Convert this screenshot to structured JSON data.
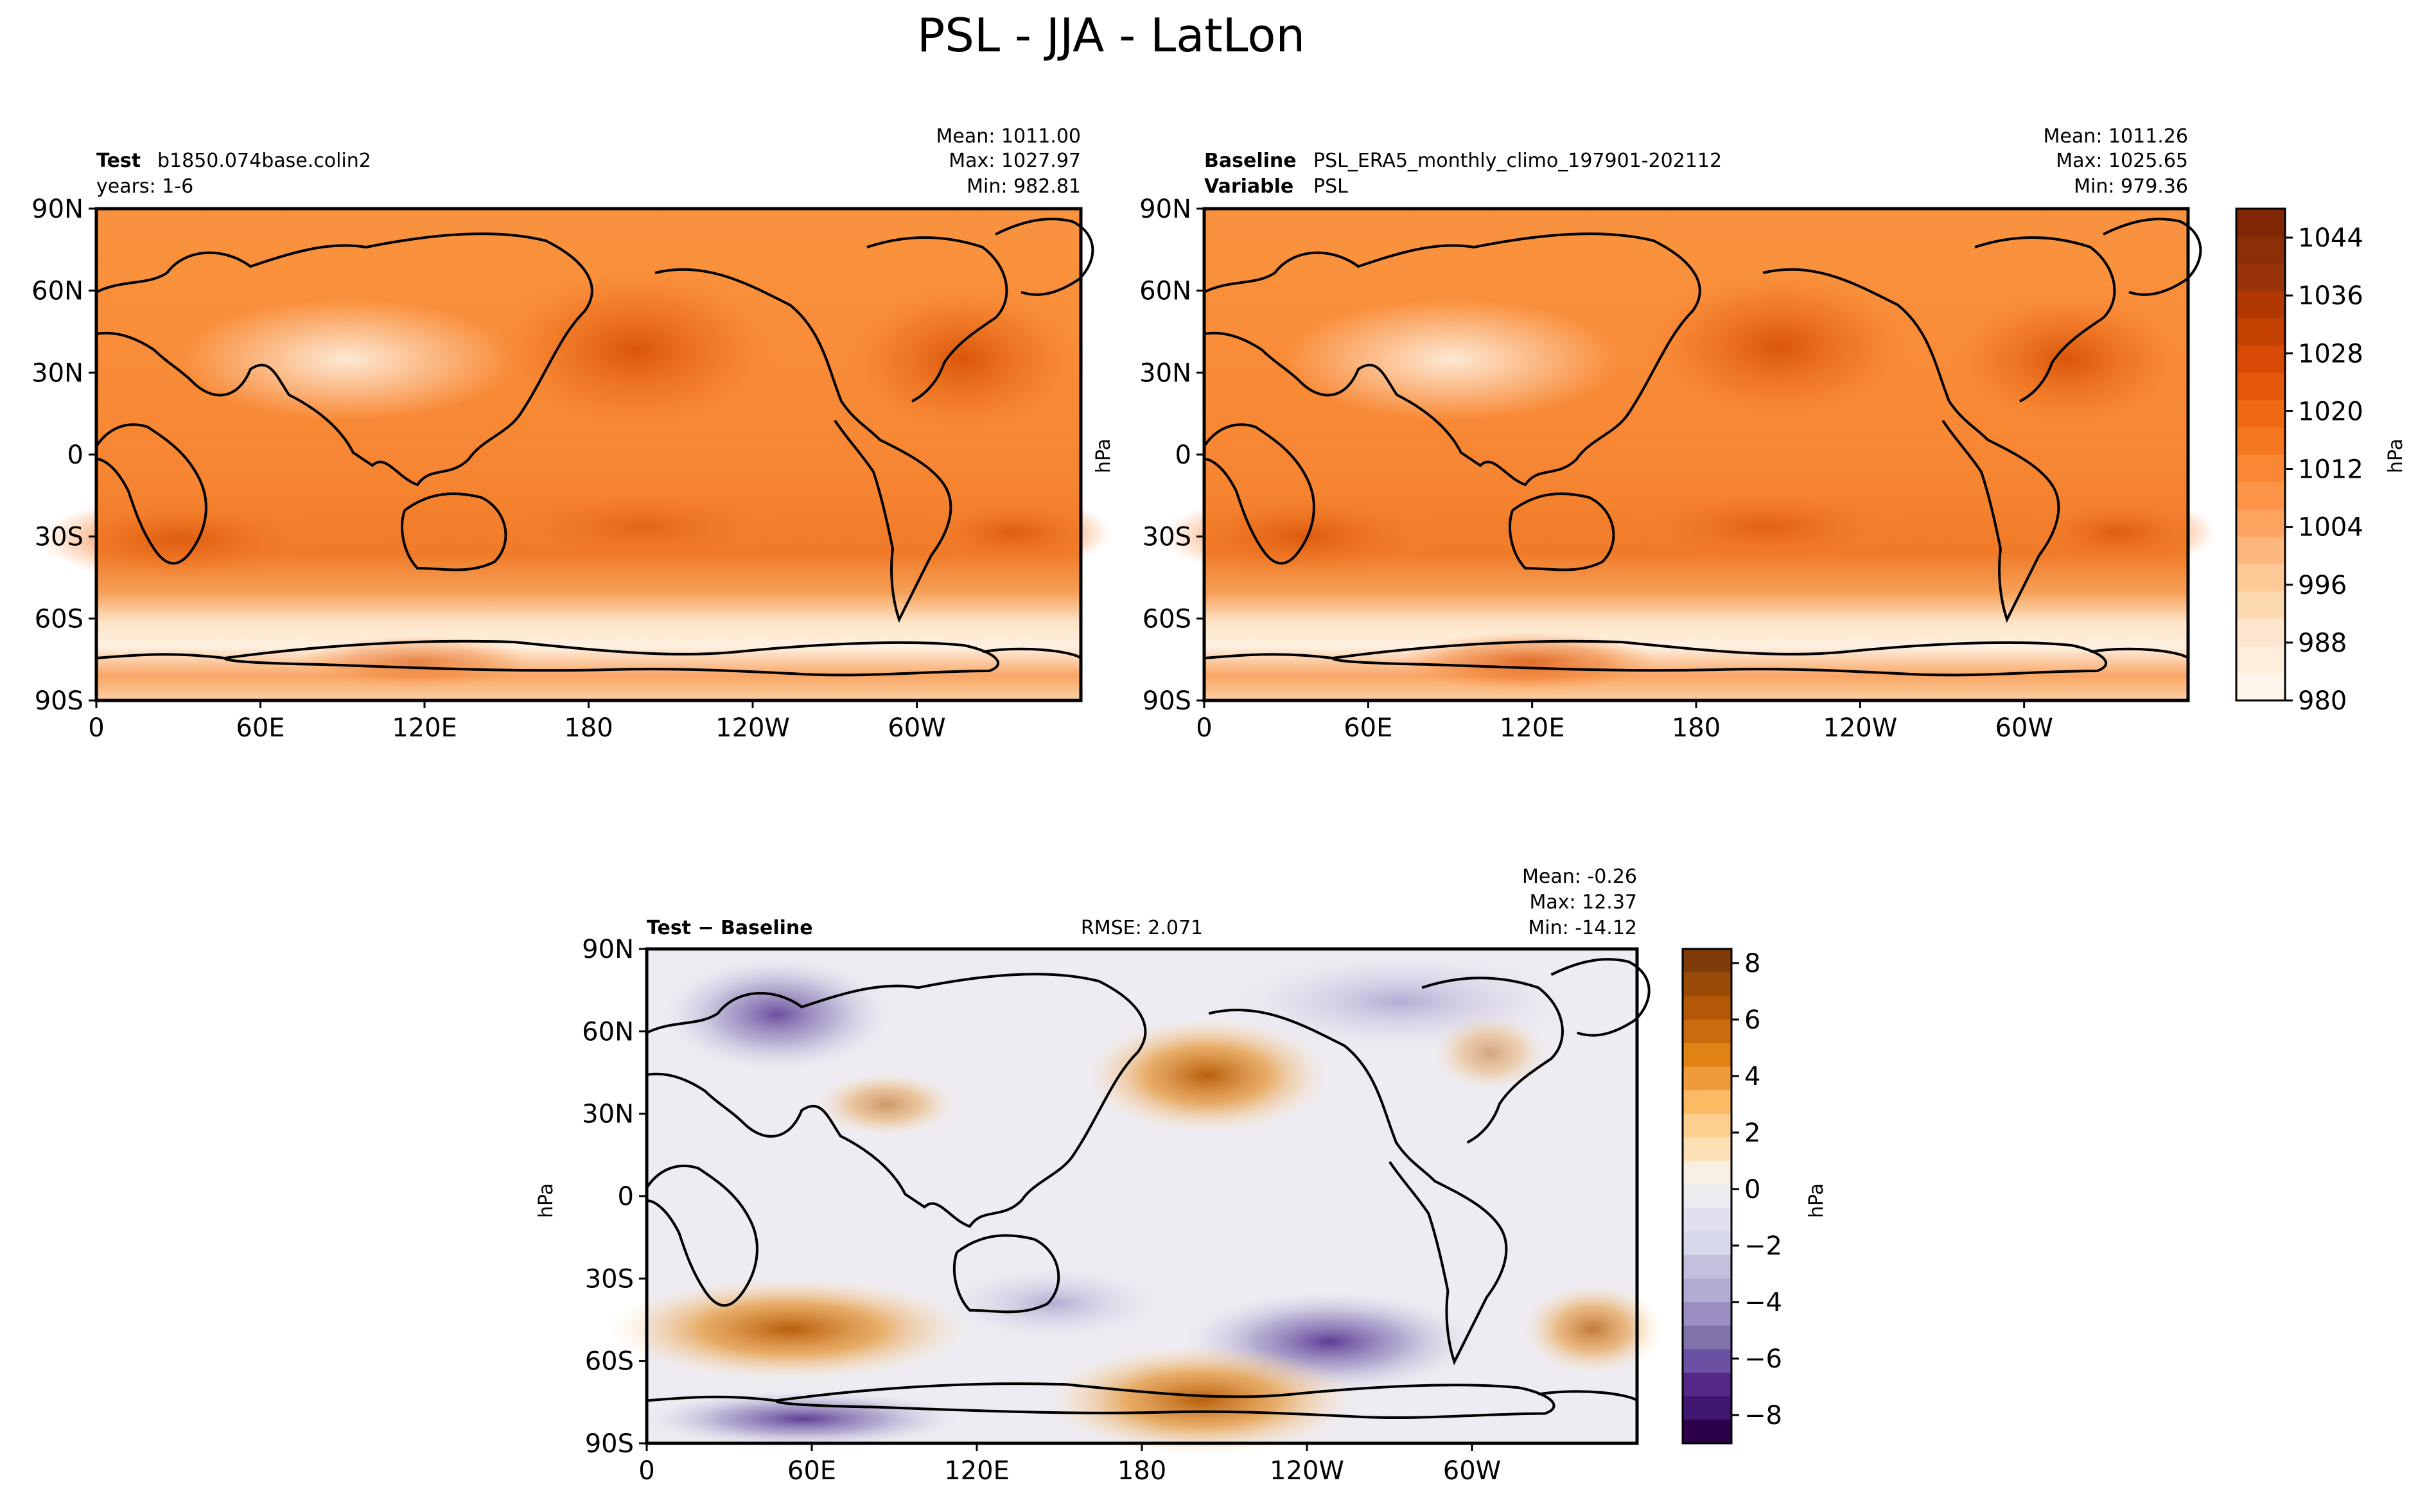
{
  "title": "PSL - JJA - LatLon",
  "panels": {
    "test": {
      "label": "Test",
      "case": "b1850.074base.colin2",
      "years": "years: 1-6",
      "mean": "Mean: 1011.00",
      "max": "Max: 1027.97",
      "min": "Min: 982.81"
    },
    "baseline": {
      "label": "Baseline",
      "case": "PSL_ERA5_monthly_climo_197901-202112",
      "variable_label": "Variable",
      "variable": "PSL",
      "mean": "Mean: 1011.26",
      "max": "Max: 1025.65",
      "min": "Min: 979.36"
    },
    "diff": {
      "label": "Test − Baseline",
      "rmse": "RMSE: 2.071",
      "mean": "Mean: -0.26",
      "max": "Max: 12.37",
      "min": "Min: -14.12"
    }
  },
  "axes": {
    "lat_ticks": [
      "90N",
      "60N",
      "30N",
      "0",
      "30S",
      "60S",
      "90S"
    ],
    "lon_ticks": [
      "0",
      "60E",
      "120E",
      "180",
      "120W",
      "60W"
    ],
    "unit_label": "hPa"
  },
  "colorbars": {
    "psl": {
      "ticks": [
        "980",
        "988",
        "996",
        "1004",
        "1012",
        "1020",
        "1028",
        "1036",
        "1044"
      ],
      "label": "hPa",
      "colors": [
        "#fff5eb",
        "#feedda",
        "#fee6ce",
        "#fdd9b0",
        "#fdc997",
        "#fdb77e",
        "#fda35f",
        "#fd9447",
        "#f88632",
        "#f47720",
        "#ee6911",
        "#e45809",
        "#d84a04",
        "#c54102",
        "#b23801",
        "#99340a",
        "#8a2e06",
        "#7f2704"
      ]
    },
    "diff": {
      "ticks": [
        "8",
        "6",
        "4",
        "2",
        "0",
        "−2",
        "−4",
        "−6",
        "−8"
      ],
      "label": "hPa",
      "colors": [
        "#7f3b08",
        "#9a4b08",
        "#b35806",
        "#c96b0e",
        "#e08214",
        "#ee9b3c",
        "#fdb863",
        "#fdcf8e",
        "#fee0b6",
        "#f7efe2",
        "#ececf0",
        "#e2e0ee",
        "#d8daeb",
        "#c3bedc",
        "#b2abd2",
        "#9b8fc2",
        "#8073ac",
        "#6a51a3",
        "#542788",
        "#3f1770",
        "#2d004b"
      ]
    }
  },
  "chart_data": [
    {
      "type": "heatmap",
      "name": "Test",
      "variable": "PSL",
      "season": "JJA",
      "unit": "hPa",
      "xlim": [
        0,
        360
      ],
      "ylim": [
        -90,
        90
      ],
      "colorbar_range": [
        980,
        1048
      ],
      "stats": {
        "mean": 1011.0,
        "max": 1027.97,
        "min": 982.81
      }
    },
    {
      "type": "heatmap",
      "name": "Baseline",
      "variable": "PSL",
      "season": "JJA",
      "unit": "hPa",
      "xlim": [
        0,
        360
      ],
      "ylim": [
        -90,
        90
      ],
      "colorbar_range": [
        980,
        1048
      ],
      "stats": {
        "mean": 1011.26,
        "max": 1025.65,
        "min": 979.36
      }
    },
    {
      "type": "heatmap",
      "name": "Test - Baseline",
      "variable": "PSL",
      "season": "JJA",
      "unit": "hPa",
      "xlim": [
        0,
        360
      ],
      "ylim": [
        -90,
        90
      ],
      "colorbar_range": [
        -9,
        8.5
      ],
      "stats": {
        "mean": -0.26,
        "max": 12.37,
        "min": -14.12,
        "rmse": 2.071
      }
    }
  ]
}
